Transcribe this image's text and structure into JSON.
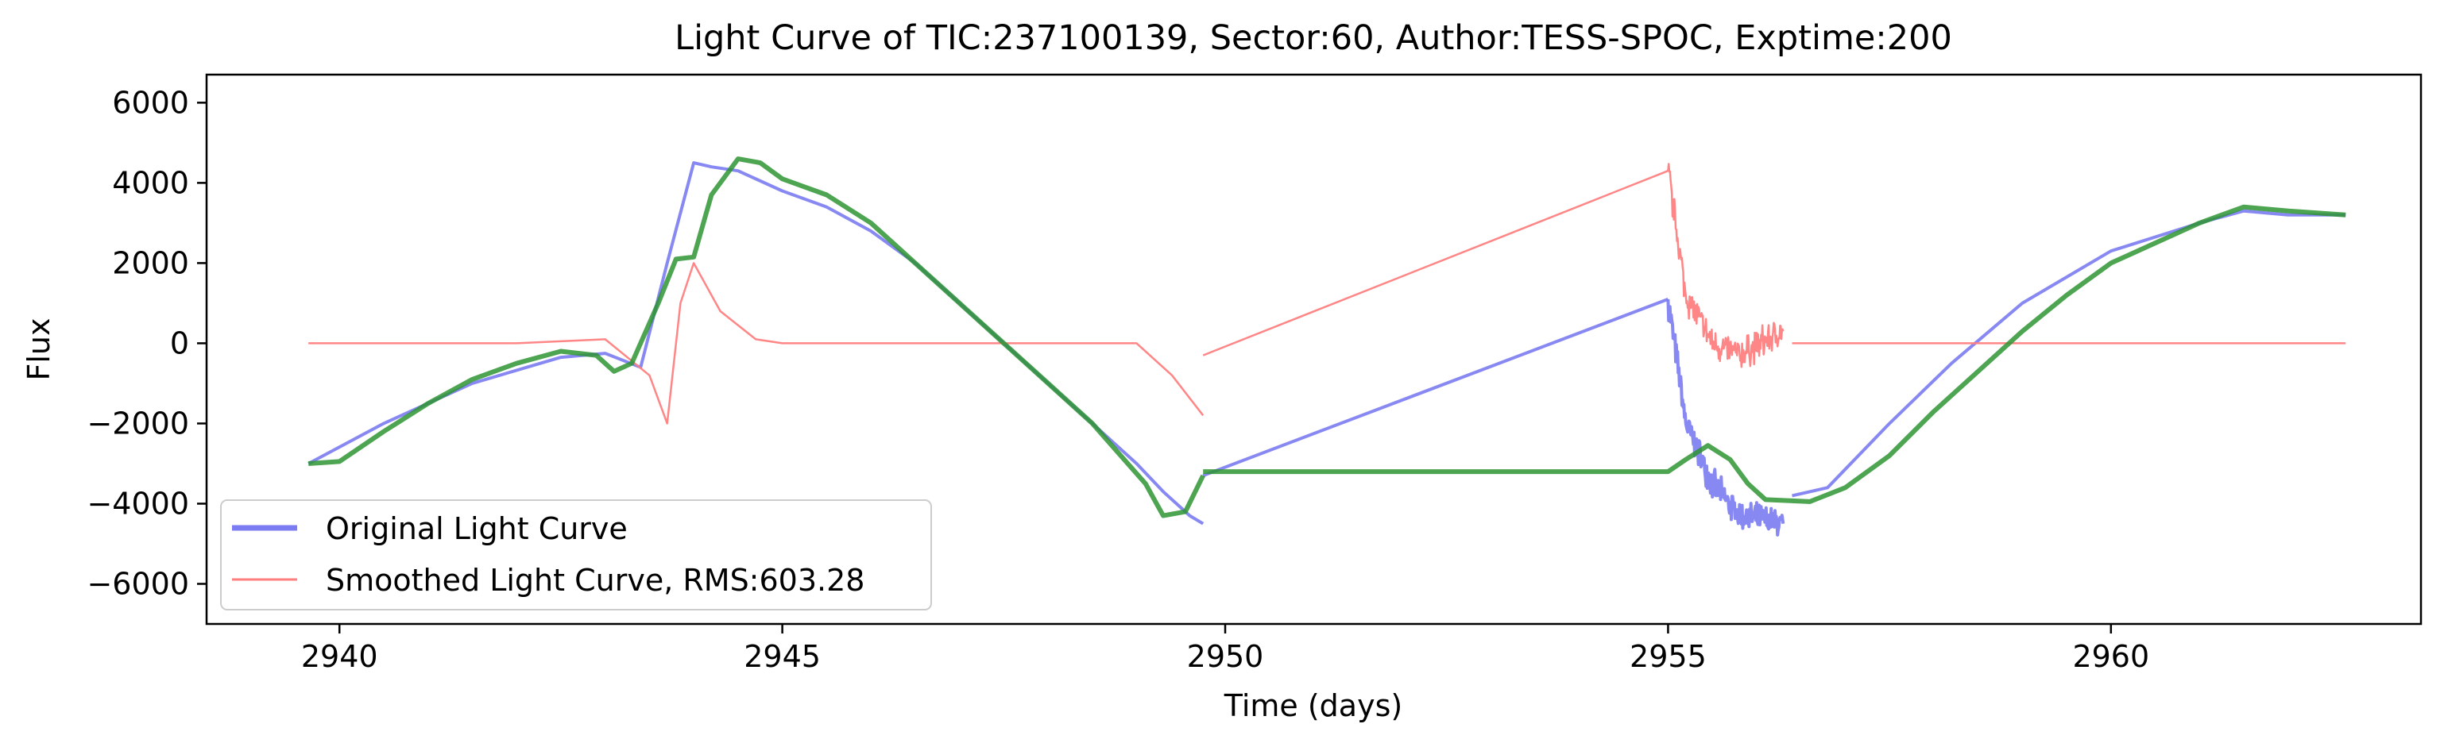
{
  "chart_data": {
    "type": "line",
    "title": "Light Curve of TIC:237100139, Sector:60, Author:TESS-SPOC, Exptime:200",
    "xlabel": "Time (days)",
    "ylabel": "Flux",
    "xlim": [
      2938.5,
      2963.5
    ],
    "ylim": [
      -7000,
      6700
    ],
    "xticks": [
      2940,
      2945,
      2950,
      2955,
      2960
    ],
    "yticks": [
      -6000,
      -4000,
      -2000,
      0,
      2000,
      4000,
      6000
    ],
    "xtick_labels": [
      "2940",
      "2945",
      "2950",
      "2955",
      "2960"
    ],
    "ytick_labels": [
      "−6000",
      "−4000",
      "−2000",
      "0",
      "2000",
      "4000",
      "6000"
    ],
    "grid": false,
    "legend_position": "lower-left",
    "series": [
      {
        "name": "Original Light Curve",
        "color": "#7b7bf2",
        "noise": 450,
        "segments": [
          {
            "x": [
              2939.65,
              2940.5,
              2941.5,
              2942.5,
              2943.0,
              2943.4,
              2943.7,
              2944.0,
              2944.2,
              2944.5,
              2945.0,
              2945.5,
              2946.0,
              2946.5,
              2947.0,
              2947.5,
              2948.0,
              2948.5,
              2949.0,
              2949.3,
              2949.6,
              2949.75
            ],
            "y": [
              -3000,
              -2000,
              -1000,
              -350,
              -250,
              -600,
              2000,
              4500,
              4400,
              4300,
              3800,
              3400,
              2800,
              2000,
              1000,
              0,
              -1000,
              -2000,
              -3000,
              -3700,
              -4300,
              -4500
            ]
          },
          {
            "x": [
              2949.75,
              2955.0
            ],
            "y": [
              -3300,
              1100
            ]
          },
          {
            "x": [
              2955.0,
              2955.2,
              2955.5,
              2955.8,
              2956.3
            ],
            "y": [
              1100,
              -2000,
              -3500,
              -4300,
              -4500
            ]
          },
          {
            "x": [
              2956.4,
              2956.8,
              2957.5,
              2958.2,
              2959.0,
              2960.0,
              2961.0,
              2961.5,
              2962.0,
              2962.65
            ],
            "y": [
              -3800,
              -3600,
              -2000,
              -500,
              1000,
              2300,
              3000,
              3300,
              3200,
              3200
            ]
          }
        ]
      },
      {
        "name": "Smoothed Light Curve, RMS:603.28",
        "color": "#ff7f7f",
        "noise": 500,
        "segments": [
          {
            "x": [
              2939.65,
              2941.0,
              2942.0,
              2943.0,
              2943.5,
              2943.7,
              2943.85,
              2944.0,
              2944.3,
              2944.7,
              2945.0,
              2946.0,
              2947.0,
              2948.0,
              2949.0,
              2949.4,
              2949.75
            ],
            "y": [
              0,
              0,
              0,
              100,
              -800,
              -2000,
              1000,
              2000,
              800,
              100,
              0,
              0,
              0,
              0,
              0,
              -800,
              -1800
            ]
          },
          {
            "x": [
              2949.75,
              2955.0
            ],
            "y": [
              -300,
              4300
            ]
          },
          {
            "x": [
              2955.0,
              2955.2,
              2955.5,
              2955.8,
              2956.3
            ],
            "y": [
              4300,
              1200,
              0,
              -300,
              300
            ]
          },
          {
            "x": [
              2956.4,
              2958.0,
              2960.0,
              2962.65
            ],
            "y": [
              0,
              0,
              0,
              0
            ]
          }
        ]
      },
      {
        "name": "",
        "color": "#2e9433",
        "noise": 0,
        "segments": [
          {
            "x": [
              2939.65,
              2940.0,
              2940.5,
              2941.0,
              2941.5,
              2942.0,
              2942.5,
              2942.9,
              2943.1,
              2943.3,
              2943.6,
              2943.8,
              2944.0,
              2944.2,
              2944.5,
              2944.75,
              2945.0,
              2945.5,
              2946.0,
              2946.5,
              2947.0,
              2947.5,
              2948.0,
              2948.5,
              2948.9,
              2949.1,
              2949.3,
              2949.55,
              2949.75
            ],
            "y": [
              -3000,
              -2950,
              -2200,
              -1500,
              -900,
              -500,
              -200,
              -300,
              -700,
              -500,
              1000,
              2100,
              2150,
              3700,
              4600,
              4500,
              4100,
              3700,
              3000,
              2000,
              1000,
              0,
              -1000,
              -2000,
              -3000,
              -3500,
              -4300,
              -4200,
              -3300
            ]
          },
          {
            "x": [
              2949.75,
              2955.0,
              2955.2,
              2955.45,
              2955.7,
              2955.9,
              2956.1,
              2956.6,
              2957.0,
              2957.5,
              2958.0,
              2958.5,
              2959.0,
              2959.5,
              2960.0,
              2960.5,
              2961.0,
              2961.5,
              2962.0,
              2962.65
            ],
            "y": [
              -3200,
              -3200,
              -2900,
              -2550,
              -2900,
              -3500,
              -3900,
              -3950,
              -3600,
              -2800,
              -1700,
              -700,
              300,
              1200,
              2000,
              2500,
              3000,
              3400,
              3300,
              3200
            ]
          }
        ]
      }
    ],
    "legend": [
      {
        "label": "Original Light Curve",
        "color": "#7b7bf2"
      },
      {
        "label": "Smoothed Light Curve, RMS:603.28",
        "color": "#ff7f7f"
      }
    ]
  }
}
